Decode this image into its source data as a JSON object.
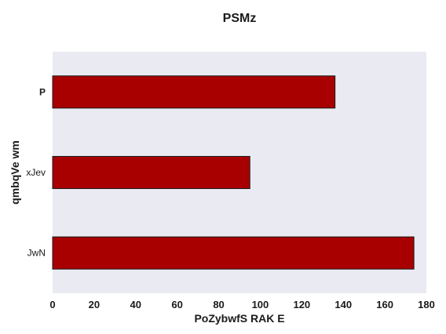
{
  "chart_data": {
    "type": "bar",
    "orientation": "horizontal",
    "title": "PSMz",
    "xlabel": "PoZybwfS RAK E",
    "ylabel": "qmbqVe wm",
    "categories": [
      "JwN",
      "xJev",
      "P"
    ],
    "values": [
      174,
      95,
      136
    ],
    "xlim": [
      0,
      180
    ],
    "xticks": [
      0,
      20,
      40,
      60,
      80,
      100,
      120,
      140,
      160,
      180
    ],
    "grid": false,
    "legend": "none",
    "colors": {
      "bar_fill": "#a80000",
      "bar_edge": "#1a1a1a",
      "plot_background": "#eaeaf2"
    }
  }
}
